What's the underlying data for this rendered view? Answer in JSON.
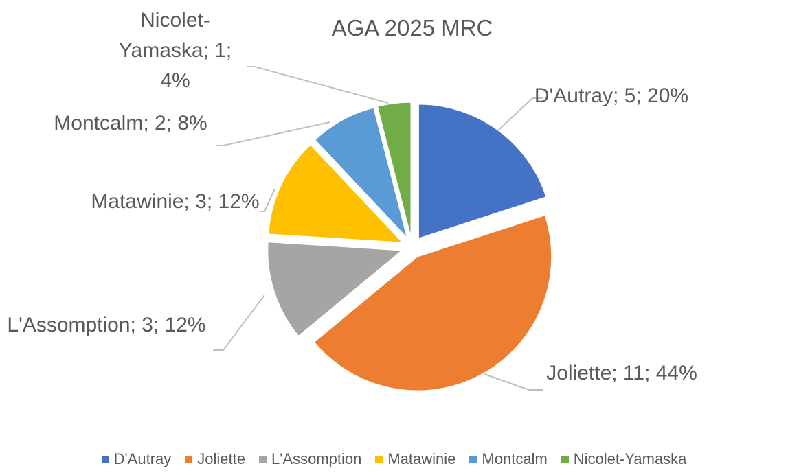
{
  "chart_data": {
    "type": "pie",
    "title": "AGA 2025 MRC",
    "categories": [
      "D'Autray",
      "Joliette",
      "L'Assomption",
      "Matawinie",
      "Montcalm",
      "Nicolet-Yamaska"
    ],
    "values": [
      5,
      11,
      3,
      3,
      2,
      1
    ],
    "value_labels": [
      "D'Autray; 5; 20%",
      "Joliette; 11; 44%",
      "L'Assomption; 3; 12%",
      "Matawinie; 3; 12%",
      "Montcalm; 2; 8%",
      "Nicolet-Yamaska; 1; 4%"
    ],
    "colors": [
      "#4472c4",
      "#ed7d31",
      "#a5a5a5",
      "#ffc000",
      "#5b9bd5",
      "#70ad47"
    ],
    "legend": "bottom"
  }
}
